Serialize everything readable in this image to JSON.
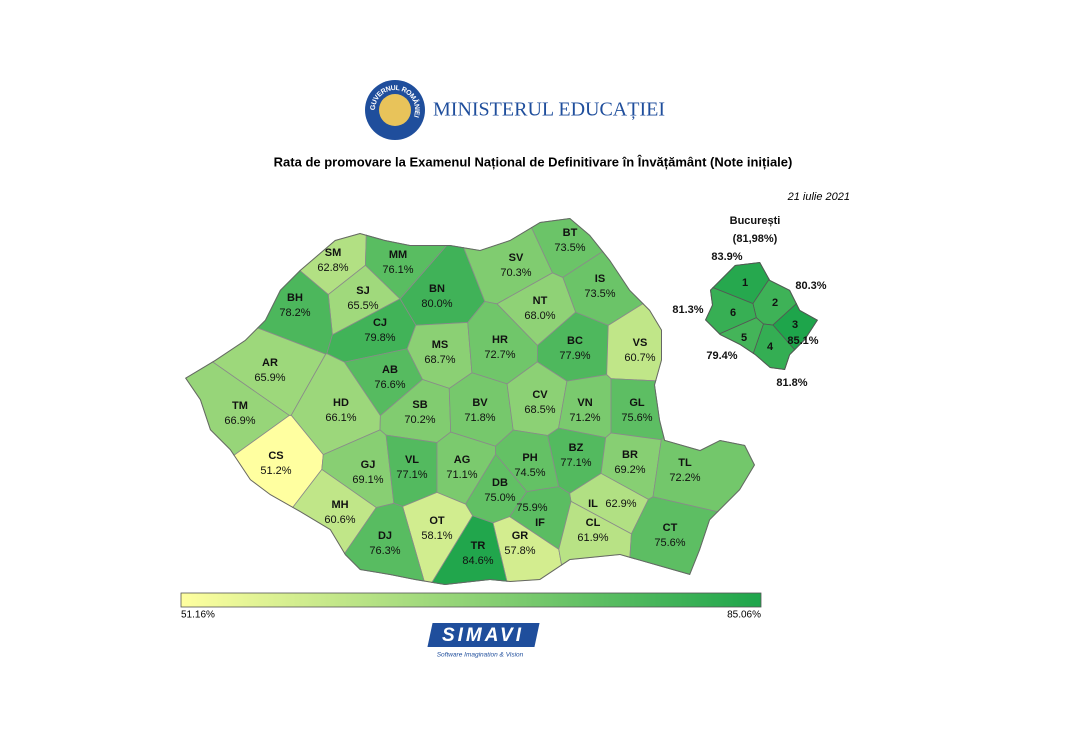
{
  "header": {
    "emblem": "GUVERNUL ROMÂNIEI",
    "ministry": "MINISTERUL EDUCAȚIEI"
  },
  "title": "Rata de promovare la Examenul Național de Definitivare în Învățământ (Note inițiale)",
  "date": "21 iulie 2021",
  "counties": [
    {
      "code": "SM",
      "value": 62.8,
      "label": "62.8%"
    },
    {
      "code": "MM",
      "value": 76.1,
      "label": "76.1%"
    },
    {
      "code": "BT",
      "value": 73.5,
      "label": "73.5%"
    },
    {
      "code": "SV",
      "value": 70.3,
      "label": "70.3%"
    },
    {
      "code": "SJ",
      "value": 65.5,
      "label": "65.5%"
    },
    {
      "code": "BN",
      "value": 80.0,
      "label": "80.0%"
    },
    {
      "code": "IS",
      "value": 73.5,
      "label": "73.5%"
    },
    {
      "code": "BH",
      "value": 78.2,
      "label": "78.2%"
    },
    {
      "code": "CJ",
      "value": 79.8,
      "label": "79.8%"
    },
    {
      "code": "NT",
      "value": 68.0,
      "label": "68.0%"
    },
    {
      "code": "MS",
      "value": 68.7,
      "label": "68.7%"
    },
    {
      "code": "HR",
      "value": 72.7,
      "label": "72.7%"
    },
    {
      "code": "BC",
      "value": 77.9,
      "label": "77.9%"
    },
    {
      "code": "VS",
      "value": 60.7,
      "label": "60.7%"
    },
    {
      "code": "AR",
      "value": 65.9,
      "label": "65.9%"
    },
    {
      "code": "AB",
      "value": 76.6,
      "label": "76.6%"
    },
    {
      "code": "TM",
      "value": 66.9,
      "label": "66.9%"
    },
    {
      "code": "HD",
      "value": 66.1,
      "label": "66.1%"
    },
    {
      "code": "SB",
      "value": 70.2,
      "label": "70.2%"
    },
    {
      "code": "BV",
      "value": 71.8,
      "label": "71.8%"
    },
    {
      "code": "CV",
      "value": 68.5,
      "label": "68.5%"
    },
    {
      "code": "VN",
      "value": 71.2,
      "label": "71.2%"
    },
    {
      "code": "GL",
      "value": 75.6,
      "label": "75.6%"
    },
    {
      "code": "CS",
      "value": 51.2,
      "label": "51.2%"
    },
    {
      "code": "GJ",
      "value": 69.1,
      "label": "69.1%"
    },
    {
      "code": "VL",
      "value": 77.1,
      "label": "77.1%"
    },
    {
      "code": "AG",
      "value": 71.1,
      "label": "71.1%"
    },
    {
      "code": "PH",
      "value": 74.5,
      "label": "74.5%"
    },
    {
      "code": "BZ",
      "value": 77.1,
      "label": "77.1%"
    },
    {
      "code": "BR",
      "value": 69.2,
      "label": "69.2%"
    },
    {
      "code": "TL",
      "value": 72.2,
      "label": "72.2%"
    },
    {
      "code": "DB",
      "value": 75.0,
      "label": "75.0%"
    },
    {
      "code": "MH",
      "value": 60.6,
      "label": "60.6%"
    },
    {
      "code": "IL",
      "value": 62.9,
      "label": "62.9%"
    },
    {
      "code": "IF",
      "value": 75.9,
      "label": "75.9%"
    },
    {
      "code": "OT",
      "value": 58.1,
      "label": "58.1%"
    },
    {
      "code": "DJ",
      "value": 76.3,
      "label": "76.3%"
    },
    {
      "code": "GR",
      "value": 57.8,
      "label": "57.8%"
    },
    {
      "code": "TR",
      "value": 84.6,
      "label": "84.6%"
    },
    {
      "code": "CL",
      "value": 61.9,
      "label": "61.9%"
    },
    {
      "code": "CT",
      "value": 75.6,
      "label": "75.6%"
    }
  ],
  "bucharest": {
    "name": "București",
    "total": "(81,98%)",
    "sectors": [
      {
        "number": "1",
        "value": 83.9,
        "label": "83.9%"
      },
      {
        "number": "2",
        "value": 80.3,
        "label": "80.3%"
      },
      {
        "number": "3",
        "value": 85.1,
        "label": "85.1%"
      },
      {
        "number": "4",
        "value": 81.8,
        "label": "81.8%"
      },
      {
        "number": "5",
        "value": 79.4,
        "label": "79.4%"
      },
      {
        "number": "6",
        "value": 81.3,
        "label": "81.3%"
      }
    ]
  },
  "legend": {
    "min": {
      "value": 51.16,
      "label": "51.16%"
    },
    "max": {
      "value": 85.06,
      "label": "85.06%"
    },
    "colors": [
      "#ffffa0",
      "#1ea54b"
    ]
  },
  "footer": {
    "brand": "SIMAVI",
    "tagline": "Software Imagination & Vision"
  }
}
